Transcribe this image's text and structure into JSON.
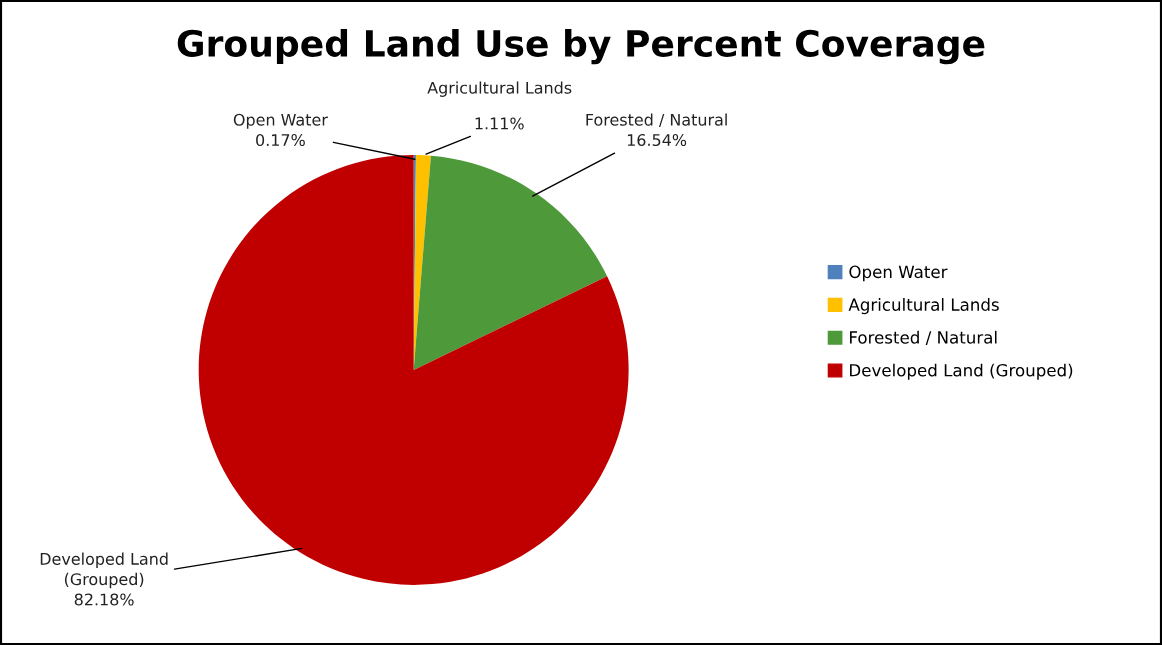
{
  "chart_data": {
    "type": "pie",
    "title": "Grouped Land Use by Percent Coverage",
    "categories": [
      "Open Water",
      "Agricultural Lands",
      "Forested / Natural",
      "Developed Land (Grouped)"
    ],
    "values": [
      0.17,
      1.11,
      16.54,
      82.18
    ],
    "value_labels": [
      "0.17%",
      "1.11%",
      "16.54%",
      "82.18%"
    ],
    "colors": [
      "#4f81bd",
      "#ffc000",
      "#4e9a3a",
      "#c00000"
    ],
    "legend": "right"
  }
}
